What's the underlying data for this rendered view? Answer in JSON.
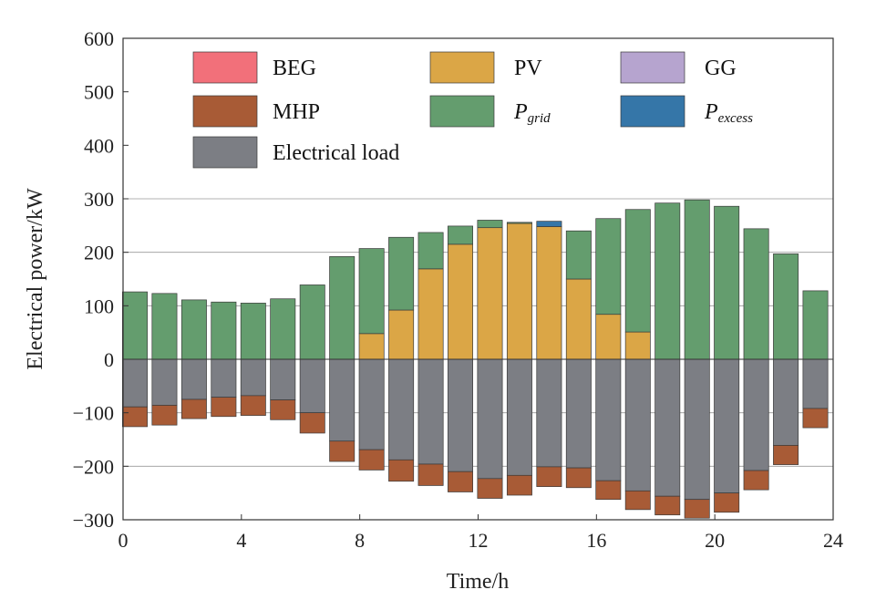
{
  "chart_data": {
    "type": "bar",
    "stacked": true,
    "xlabel": "Time/h",
    "ylabel": "Electrical power/kW",
    "xlim": [
      0,
      24
    ],
    "ylim": [
      -300,
      600
    ],
    "xticks": [
      0,
      4,
      8,
      12,
      16,
      20,
      24
    ],
    "yticks": [
      600,
      500,
      400,
      300,
      200,
      100,
      0,
      -100,
      -200,
      -300
    ],
    "x_tick_labels": [
      "0",
      "4",
      "8",
      "12",
      "16",
      "20",
      "24"
    ],
    "y_tick_labels": [
      "600",
      "500",
      "400",
      "300",
      "200",
      "100",
      "0",
      "−100",
      "−200",
      "−300"
    ],
    "gridlines_y": [
      300,
      200,
      100,
      -100,
      -200
    ],
    "x": [
      0.4,
      1.4,
      2.4,
      3.4,
      4.4,
      5.4,
      6.4,
      7.4,
      8.4,
      9.4,
      10.4,
      11.4,
      12.4,
      13.4,
      14.4,
      15.4,
      16.4,
      17.4,
      18.4,
      19.4,
      20.4,
      21.4,
      22.4,
      23.4
    ],
    "legend": {
      "placement": "top",
      "items": [
        {
          "key": "BEG",
          "label": "BEG",
          "main": "",
          "sub": "",
          "color": "#f2707a"
        },
        {
          "key": "PV",
          "label": "PV",
          "main": "",
          "sub": "",
          "color": "#dba646"
        },
        {
          "key": "GG",
          "label": "GG",
          "main": "",
          "sub": "",
          "color": "#b6a4cf"
        },
        {
          "key": "MHP",
          "label": "MHP",
          "main": "",
          "sub": "",
          "color": "#a85b36"
        },
        {
          "key": "Pgrid",
          "label": "",
          "main": "P",
          "sub": "grid",
          "color": "#649d6e"
        },
        {
          "key": "Pexcess",
          "label": "",
          "main": "P",
          "sub": "excess",
          "color": "#3576a8"
        },
        {
          "key": "Electrical load",
          "label": "Electrical load",
          "main": "",
          "sub": "",
          "color": "#7c7e84"
        }
      ]
    },
    "series": [
      {
        "name": "BEG",
        "values": [
          0,
          0,
          0,
          0,
          0,
          0,
          0,
          0,
          0,
          0,
          0,
          0,
          0,
          0,
          0,
          0,
          0,
          0,
          0,
          0,
          0,
          0,
          0,
          0
        ]
      },
      {
        "name": "PV",
        "values": [
          0,
          0,
          0,
          0,
          0,
          0,
          0,
          0,
          48,
          92,
          169,
          215,
          246,
          254,
          248,
          150,
          84,
          51,
          0,
          0,
          0,
          0,
          0,
          0
        ]
      },
      {
        "name": "GG",
        "values": [
          0,
          0,
          0,
          0,
          0,
          0,
          0,
          0,
          0,
          0,
          0,
          0,
          0,
          0,
          0,
          0,
          0,
          0,
          0,
          0,
          0,
          0,
          0,
          0
        ]
      },
      {
        "name": "Pgrid",
        "values": [
          126,
          123,
          111,
          107,
          105,
          113,
          139,
          192,
          159,
          136,
          68,
          34,
          14,
          2,
          0,
          90,
          179,
          229,
          292,
          298,
          286,
          244,
          197,
          128
        ]
      },
      {
        "name": "Pexcess",
        "values": [
          0,
          0,
          0,
          0,
          0,
          0,
          0,
          0,
          0,
          0,
          0,
          0,
          0,
          0,
          10,
          0,
          0,
          0,
          0,
          0,
          0,
          0,
          0,
          0
        ]
      },
      {
        "name": "Electrical load",
        "values": [
          -89,
          -86,
          -75,
          -71,
          -68,
          -76,
          -100,
          -153,
          -169,
          -188,
          -196,
          -210,
          -223,
          -217,
          -201,
          -203,
          -227,
          -246,
          -256,
          -262,
          -250,
          -208,
          -161,
          -92
        ]
      },
      {
        "name": "MHP",
        "values": [
          -37,
          -37,
          -36,
          -36,
          -37,
          -37,
          -38,
          -38,
          -38,
          -40,
          -40,
          -38,
          -37,
          -37,
          -37,
          -37,
          -35,
          -35,
          -35,
          -35,
          -36,
          -36,
          -36,
          -36
        ]
      }
    ]
  }
}
